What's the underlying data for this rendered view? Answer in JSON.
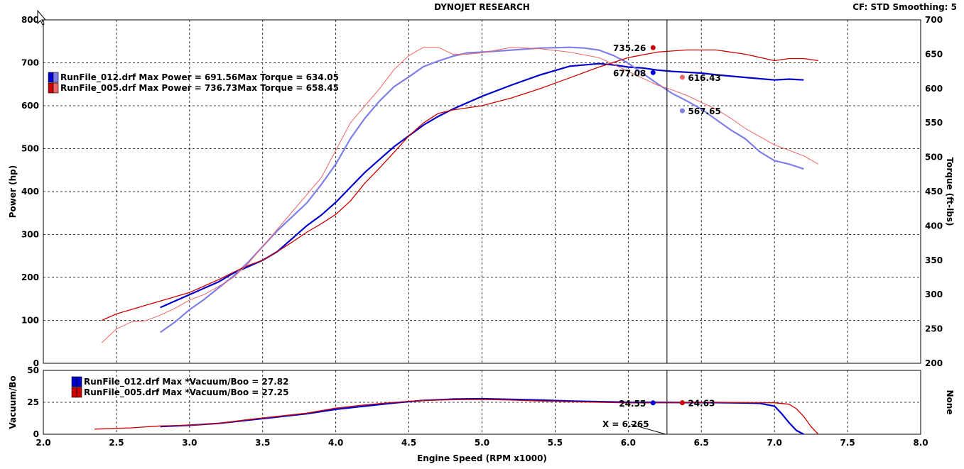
{
  "header": {
    "title": "DYNOJET RESEARCH",
    "settings": "CF: STD  Smoothing: 5"
  },
  "colors": {
    "run012_power": "#0000cc",
    "run012_torque": "#7f7fe8",
    "run005_power": "#cc0000",
    "run005_torque": "#ee6666"
  },
  "chart_data": [
    {
      "type": "line",
      "title": "DYNOJET RESEARCH",
      "xlabel": "Engine Speed (RPM x1000)",
      "ylabel": "Power (hp)",
      "y2label": "Torque (ft-lbs)",
      "xlim": [
        2.0,
        8.0
      ],
      "ylim": [
        0,
        800
      ],
      "y2lim": [
        200,
        700
      ],
      "x_ticks": [
        "2.0",
        "2.5",
        "3.0",
        "3.5",
        "4.0",
        "4.5",
        "5.0",
        "5.5",
        "6.0",
        "6.5",
        "7.0",
        "7.5",
        "8.0"
      ],
      "y_ticks": [
        "0",
        "100",
        "200",
        "300",
        "400",
        "500",
        "600",
        "700",
        "800"
      ],
      "y2_ticks": [
        "200",
        "250",
        "300",
        "350",
        "400",
        "450",
        "500",
        "550",
        "600",
        "650",
        "700"
      ],
      "grid": true,
      "cursor_x": 6.265,
      "legend": [
        {
          "label": "RunFile_012.drf Max Power = 691.56Max Torque = 634.05",
          "colors": [
            "#0000cc",
            "#7f7fe8"
          ]
        },
        {
          "label": "RunFile_005.drf Max Power = 736.73Max Torque = 658.45",
          "colors": [
            "#cc0000",
            "#ee6666"
          ]
        }
      ],
      "series": [
        {
          "axis": "left",
          "color": "#0000cc",
          "width": 2.2,
          "x": [
            2.8,
            2.9,
            3.0,
            3.1,
            3.2,
            3.3,
            3.4,
            3.5,
            3.6,
            3.7,
            3.8,
            3.9,
            4.0,
            4.1,
            4.2,
            4.3,
            4.4,
            4.5,
            4.6,
            4.7,
            4.8,
            4.9,
            5.0,
            5.2,
            5.4,
            5.6,
            5.8,
            5.9,
            6.0,
            6.1,
            6.2,
            6.3,
            6.4,
            6.5,
            6.6,
            6.8,
            7.0,
            7.1,
            7.2
          ],
          "y": [
            130,
            145,
            160,
            175,
            190,
            210,
            225,
            240,
            260,
            290,
            320,
            345,
            375,
            410,
            445,
            475,
            505,
            530,
            555,
            575,
            592,
            607,
            622,
            648,
            672,
            692,
            698,
            695,
            690,
            688,
            683,
            680,
            678,
            676,
            672,
            666,
            660,
            662,
            660
          ]
        },
        {
          "axis": "right",
          "color": "#7f7fe8",
          "width": 2.2,
          "x": [
            2.8,
            2.9,
            3.0,
            3.1,
            3.2,
            3.3,
            3.4,
            3.5,
            3.6,
            3.7,
            3.8,
            3.9,
            4.0,
            4.1,
            4.2,
            4.3,
            4.4,
            4.5,
            4.6,
            4.7,
            4.8,
            4.9,
            5.0,
            5.2,
            5.4,
            5.6,
            5.7,
            5.8,
            5.9,
            6.0,
            6.1,
            6.2,
            6.3,
            6.4,
            6.5,
            6.6,
            6.7,
            6.8,
            6.9,
            7.0,
            7.1,
            7.2
          ],
          "y": [
            245,
            260,
            278,
            293,
            310,
            327,
            347,
            370,
            393,
            413,
            433,
            460,
            490,
            527,
            557,
            582,
            603,
            617,
            632,
            640,
            647,
            652,
            653,
            656,
            659,
            660,
            659,
            656,
            648,
            637,
            622,
            607,
            593,
            582,
            570,
            555,
            540,
            527,
            508,
            495,
            490,
            483
          ]
        },
        {
          "axis": "left",
          "color": "#cc0000",
          "width": 1.3,
          "x": [
            2.4,
            2.5,
            2.6,
            2.7,
            2.8,
            2.9,
            3.0,
            3.1,
            3.2,
            3.3,
            3.4,
            3.5,
            3.6,
            3.7,
            3.8,
            3.9,
            4.0,
            4.1,
            4.2,
            4.3,
            4.4,
            4.5,
            4.6,
            4.7,
            4.8,
            4.9,
            5.0,
            5.2,
            5.4,
            5.6,
            5.8,
            6.0,
            6.2,
            6.4,
            6.6,
            6.8,
            7.0,
            7.1,
            7.2,
            7.3
          ],
          "y": [
            100,
            115,
            125,
            135,
            145,
            155,
            165,
            180,
            195,
            212,
            228,
            240,
            260,
            282,
            305,
            325,
            347,
            378,
            420,
            455,
            492,
            530,
            560,
            582,
            590,
            595,
            600,
            618,
            640,
            665,
            690,
            712,
            725,
            730,
            730,
            720,
            705,
            710,
            710,
            705
          ]
        },
        {
          "axis": "right",
          "color": "#ee6666",
          "width": 1.0,
          "x": [
            2.4,
            2.5,
            2.6,
            2.7,
            2.8,
            2.9,
            3.0,
            3.1,
            3.2,
            3.3,
            3.4,
            3.5,
            3.6,
            3.7,
            3.8,
            3.9,
            4.0,
            4.1,
            4.2,
            4.3,
            4.4,
            4.5,
            4.6,
            4.7,
            4.8,
            4.9,
            5.0,
            5.2,
            5.4,
            5.6,
            5.8,
            6.0,
            6.1,
            6.2,
            6.3,
            6.4,
            6.5,
            6.6,
            6.7,
            6.8,
            6.9,
            7.0,
            7.1,
            7.2,
            7.3
          ],
          "y": [
            230,
            250,
            260,
            262,
            270,
            280,
            292,
            300,
            312,
            325,
            345,
            370,
            395,
            420,
            445,
            470,
            510,
            550,
            575,
            600,
            628,
            648,
            660,
            660,
            650,
            650,
            652,
            660,
            658,
            653,
            645,
            625,
            615,
            605,
            598,
            590,
            580,
            570,
            557,
            542,
            530,
            518,
            510,
            502,
            490
          ]
        }
      ],
      "markers": [
        {
          "x": 6.17,
          "y": 735.26,
          "axis": "left",
          "label": "735.26",
          "color": "#cc0000",
          "label_side": "left"
        },
        {
          "x": 6.17,
          "y": 677.08,
          "axis": "left",
          "label": "677.08",
          "color": "#0000cc",
          "label_side": "left"
        },
        {
          "x": 6.37,
          "y": 616.43,
          "axis": "right",
          "label": "616.43",
          "color": "#ee6666",
          "label_side": "right"
        },
        {
          "x": 6.37,
          "y": 567.65,
          "axis": "right",
          "label": "567.65",
          "color": "#7f7fe8",
          "label_side": "right"
        }
      ]
    },
    {
      "type": "line",
      "xlabel": "Engine Speed (RPM x1000)",
      "ylabel": "Vacuum/Bo",
      "y2label": "None",
      "xlim": [
        2.0,
        8.0
      ],
      "ylim": [
        0,
        50
      ],
      "x_ticks": [
        "2.0",
        "2.5",
        "3.0",
        "3.5",
        "4.0",
        "4.5",
        "5.0",
        "5.5",
        "6.0",
        "6.5",
        "7.0",
        "7.5",
        "8.0"
      ],
      "y_ticks": [
        "0",
        "25",
        "50"
      ],
      "grid": true,
      "cursor_x": 6.265,
      "cursor_label": "X = 6.265",
      "legend": [
        {
          "label": "RunFile_012.drf Max *Vacuum/Boo = 27.82",
          "colors": [
            "#0000cc",
            "#0000cc"
          ]
        },
        {
          "label": "RunFile_005.drf Max *Vacuum/Boo = 27.25",
          "colors": [
            "#cc0000",
            "#cc0000"
          ]
        }
      ],
      "series": [
        {
          "axis": "left",
          "color": "#0000cc",
          "width": 2.2,
          "x": [
            2.8,
            3.0,
            3.2,
            3.4,
            3.6,
            3.8,
            4.0,
            4.2,
            4.4,
            4.6,
            4.8,
            5.0,
            5.2,
            5.4,
            5.6,
            5.8,
            6.0,
            6.2,
            6.4,
            6.6,
            6.8,
            6.9,
            7.0,
            7.05,
            7.1,
            7.15,
            7.2
          ],
          "y": [
            6,
            7,
            8.5,
            11,
            13.5,
            16,
            19.5,
            22,
            24.5,
            26.5,
            27.5,
            27.8,
            27.3,
            26.8,
            26,
            25.5,
            25,
            25,
            24.8,
            24.8,
            24.5,
            24.2,
            22,
            16,
            9,
            3,
            0
          ]
        },
        {
          "axis": "left",
          "color": "#cc0000",
          "width": 1.3,
          "x": [
            2.35,
            2.6,
            2.8,
            3.0,
            3.2,
            3.4,
            3.6,
            3.8,
            4.0,
            4.2,
            4.4,
            4.6,
            4.8,
            5.0,
            5.2,
            5.4,
            5.6,
            5.8,
            6.0,
            6.2,
            6.4,
            6.6,
            6.8,
            7.0,
            7.1,
            7.15,
            7.2,
            7.25,
            7.3
          ],
          "y": [
            4,
            5,
            6.5,
            7,
            8.5,
            11.5,
            14,
            16.5,
            20.5,
            23,
            25,
            26.5,
            27,
            27.2,
            26.8,
            26,
            25.5,
            25,
            24.5,
            24.6,
            24.8,
            24.8,
            24.8,
            24.6,
            23.5,
            20,
            14,
            6,
            0
          ]
        }
      ],
      "markers": [
        {
          "x": 6.17,
          "y": 24.55,
          "axis": "left",
          "label": "24.55",
          "color": "#0000cc",
          "label_side": "left"
        },
        {
          "x": 6.37,
          "y": 24.63,
          "axis": "left",
          "label": "24.63",
          "color": "#cc0000",
          "label_side": "right"
        }
      ]
    }
  ]
}
